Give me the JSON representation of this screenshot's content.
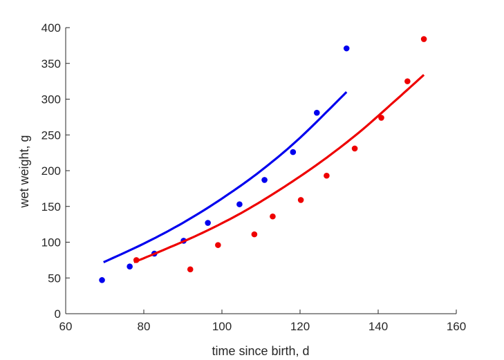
{
  "chart_data": {
    "type": "scatter",
    "xlabel": "time since birth, d",
    "ylabel": "wet weight, g",
    "xlim": [
      60,
      160
    ],
    "ylim": [
      0,
      400
    ],
    "xticks": [
      60,
      80,
      100,
      120,
      140,
      160
    ],
    "yticks": [
      0,
      50,
      100,
      150,
      200,
      250,
      300,
      350,
      400
    ],
    "grid": false,
    "box": "left-bottom-axes",
    "series": [
      {
        "color": "#0000ee",
        "points": [
          {
            "x": 69.3,
            "y": 47
          },
          {
            "x": 76.4,
            "y": 66
          },
          {
            "x": 82.7,
            "y": 84
          },
          {
            "x": 90.2,
            "y": 102
          },
          {
            "x": 96.4,
            "y": 127
          },
          {
            "x": 104.5,
            "y": 153
          },
          {
            "x": 110.9,
            "y": 187
          },
          {
            "x": 118.2,
            "y": 226
          },
          {
            "x": 124.3,
            "y": 281
          },
          {
            "x": 131.9,
            "y": 371
          }
        ],
        "fit": [
          {
            "x": 69.7,
            "y": 72
          },
          {
            "x": 80,
            "y": 98
          },
          {
            "x": 90,
            "y": 127
          },
          {
            "x": 100,
            "y": 161
          },
          {
            "x": 110,
            "y": 200
          },
          {
            "x": 120,
            "y": 246
          },
          {
            "x": 131.9,
            "y": 310
          }
        ]
      },
      {
        "color": "#ee0000",
        "points": [
          {
            "x": 78.1,
            "y": 75
          },
          {
            "x": 91.9,
            "y": 62
          },
          {
            "x": 99.0,
            "y": 96
          },
          {
            "x": 108.3,
            "y": 111
          },
          {
            "x": 113.0,
            "y": 136
          },
          {
            "x": 120.2,
            "y": 159
          },
          {
            "x": 126.8,
            "y": 193
          },
          {
            "x": 134.0,
            "y": 231
          },
          {
            "x": 140.8,
            "y": 274
          },
          {
            "x": 147.5,
            "y": 325
          },
          {
            "x": 151.7,
            "y": 384
          }
        ],
        "fit": [
          {
            "x": 77.5,
            "y": 72
          },
          {
            "x": 85,
            "y": 89
          },
          {
            "x": 95,
            "y": 113
          },
          {
            "x": 105,
            "y": 141
          },
          {
            "x": 115,
            "y": 174
          },
          {
            "x": 125,
            "y": 211
          },
          {
            "x": 135,
            "y": 253
          },
          {
            "x": 145,
            "y": 301
          },
          {
            "x": 151.7,
            "y": 334
          }
        ]
      }
    ]
  }
}
